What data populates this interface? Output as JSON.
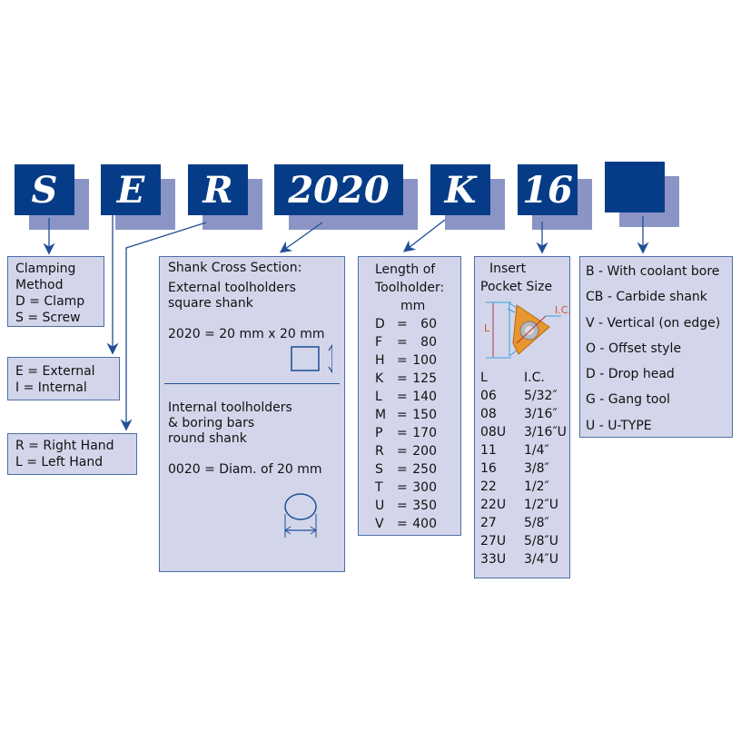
{
  "codes": [
    "S",
    "E",
    "R",
    "2020",
    "K",
    "16",
    ""
  ],
  "clamping": {
    "title1": "Clamping",
    "title2": "Method",
    "items": [
      "D =  Clamp",
      "S = Screw"
    ]
  },
  "direction": {
    "items": [
      "E = External",
      "I =  Internal"
    ]
  },
  "hand": {
    "items": [
      "R = Right Hand",
      "L = Left Hand"
    ]
  },
  "shank": {
    "title": "Shank Cross Section:",
    "ext1": "External toolholders",
    "ext2": "square shank",
    "ext_example": "2020 = 20 mm x 20 mm",
    "int1": "Internal toolholders",
    "int2": "& boring bars",
    "int3": "round shank",
    "int_example": "0020 = Diam. of 20 mm"
  },
  "length": {
    "title1": "Length of",
    "title2": "Toolholder:",
    "unit": "mm",
    "rows": [
      [
        "D",
        "60"
      ],
      [
        "F",
        "80"
      ],
      [
        "H",
        "100"
      ],
      [
        "K",
        "125"
      ],
      [
        "L",
        "140"
      ],
      [
        "M",
        "150"
      ],
      [
        "P",
        "170"
      ],
      [
        "R",
        "200"
      ],
      [
        "S",
        "250"
      ],
      [
        "T",
        "300"
      ],
      [
        "U",
        "350"
      ],
      [
        "V",
        "400"
      ]
    ]
  },
  "insert": {
    "title1": "Insert",
    "title2": "Pocket Size",
    "label_l": "L",
    "label_ic": "I.C.",
    "header": [
      "L",
      "I.C."
    ],
    "rows": [
      [
        "06",
        "5/32″"
      ],
      [
        "08",
        "3/16″"
      ],
      [
        "08U",
        "3/16″U"
      ],
      [
        "11",
        "1/4″"
      ],
      [
        "16",
        "3/8″"
      ],
      [
        "22",
        "1/2″"
      ],
      [
        "22U",
        "1/2″U"
      ],
      [
        "27",
        "5/8″"
      ],
      [
        "27U",
        "5/8″U"
      ],
      [
        "33U",
        "3/4″U"
      ]
    ]
  },
  "options": {
    "items": [
      "B - With coolant bore",
      "CB - Carbide shank",
      "V - Vertical (on edge)",
      "O - Offset style",
      "D - Drop head",
      "G - Gang tool",
      "U - U-TYPE"
    ]
  },
  "colors": {
    "code_bg": "#063c87",
    "shadow": "#8b95c5",
    "box_bg": "#d3d6ea",
    "line": "#1f4f96",
    "insert": "#e8962e"
  }
}
